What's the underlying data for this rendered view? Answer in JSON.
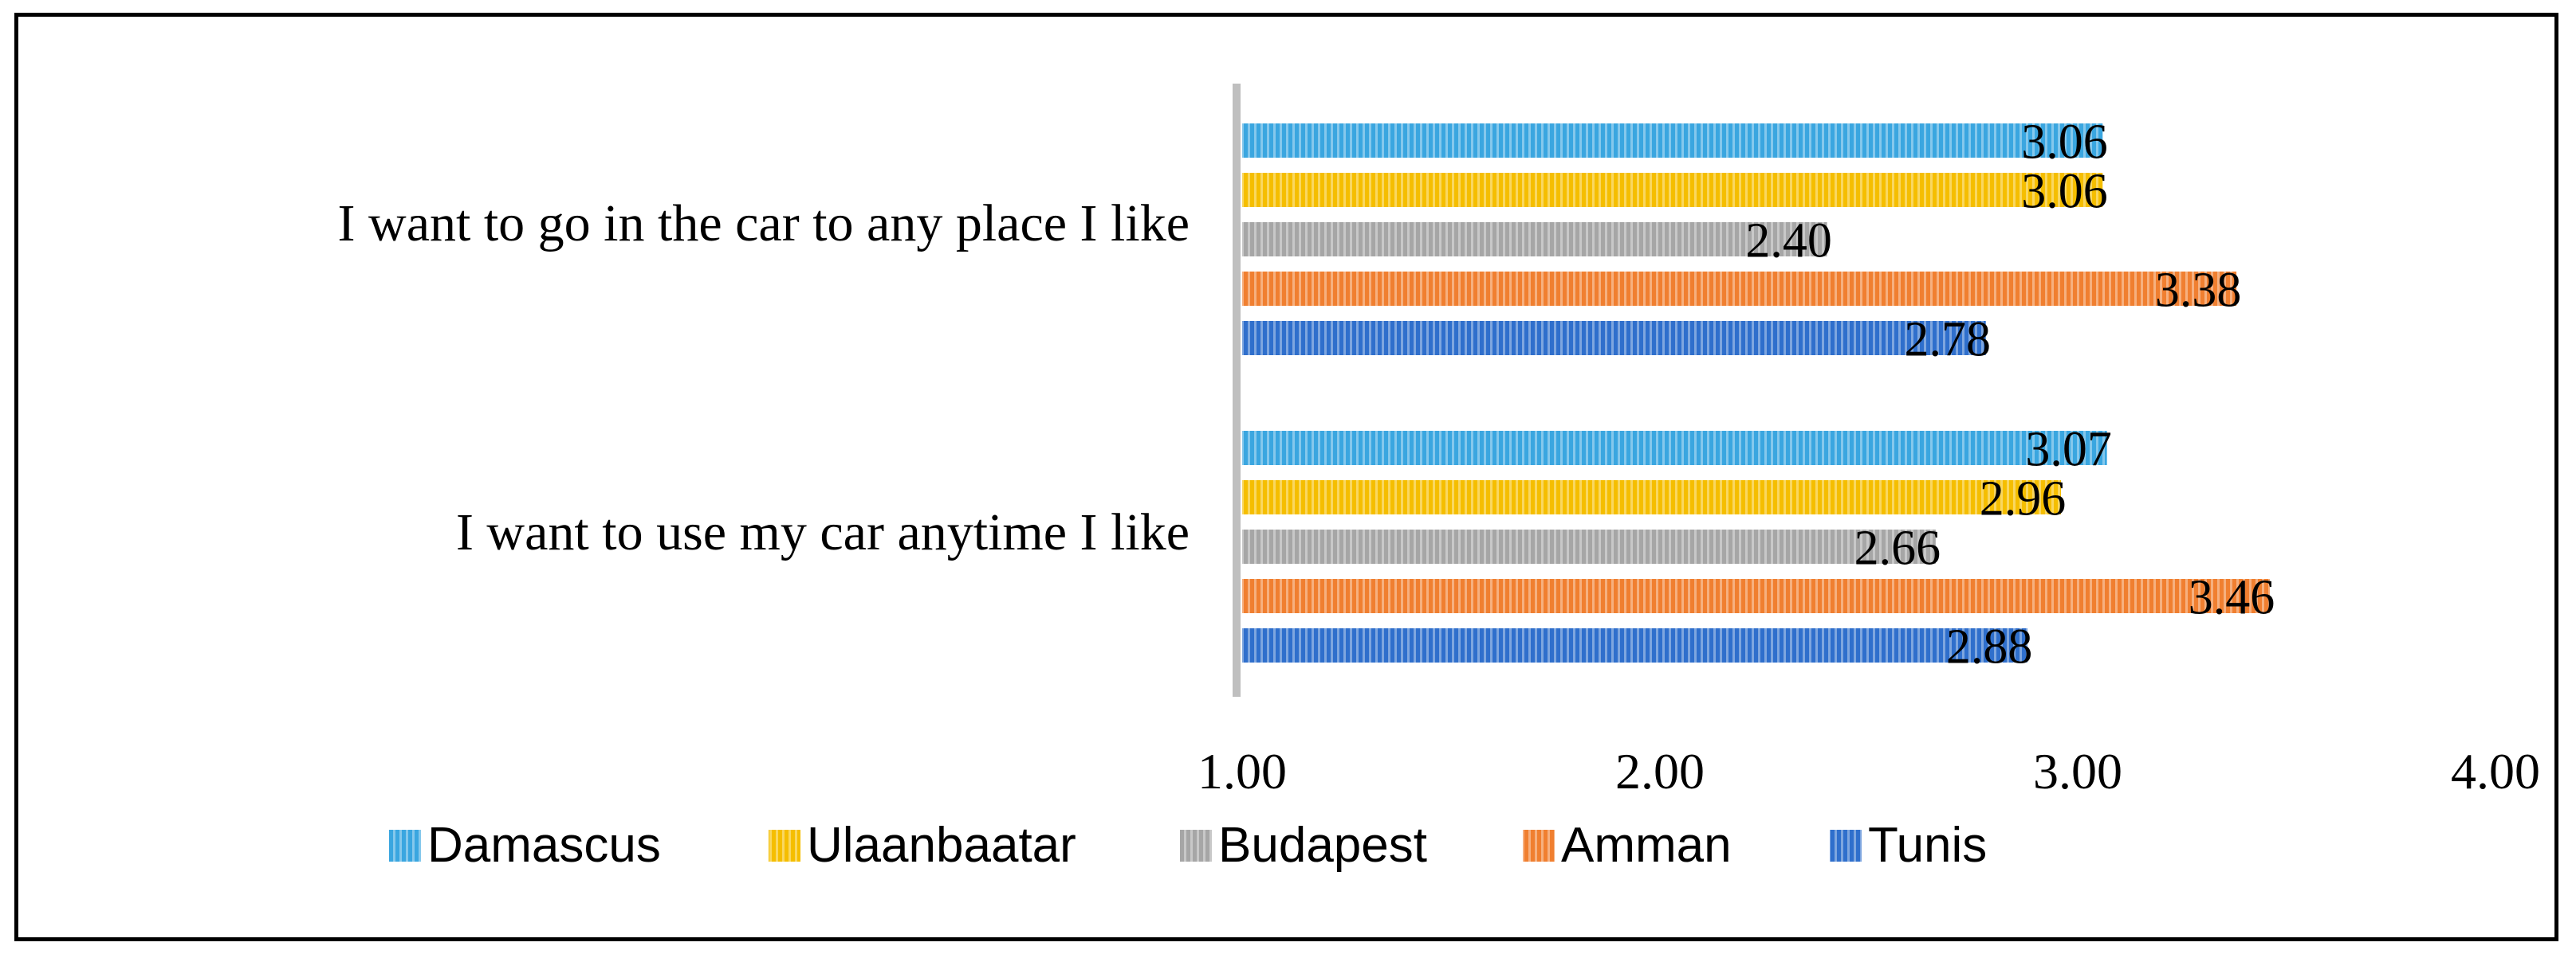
{
  "chart_data": {
    "type": "bar",
    "orientation": "horizontal",
    "title": "",
    "xlabel": "",
    "ylabel": "",
    "xlim": [
      1.0,
      4.0
    ],
    "ticks": [
      "1.00",
      "2.00",
      "3.00",
      "4.00"
    ],
    "tick_values": [
      1.0,
      2.0,
      3.0,
      4.0
    ],
    "grid": false,
    "legend_position": "bottom",
    "categories": [
      "I want to go in the car to any place I like",
      "I want to use my car anytime I like"
    ],
    "series": [
      {
        "name": "Damascus",
        "color": "#3AA6E0",
        "values": [
          3.06,
          3.07
        ],
        "labels": [
          "3.06",
          "3.07"
        ]
      },
      {
        "name": "Ulaanbaatar",
        "color": "#F5BE00",
        "values": [
          3.06,
          2.96
        ],
        "labels": [
          "3.06",
          "2.96"
        ]
      },
      {
        "name": "Budapest",
        "color": "#A6A6A6",
        "values": [
          2.4,
          2.66
        ],
        "labels": [
          "2.40",
          "2.66"
        ]
      },
      {
        "name": "Amman",
        "color": "#F07F30",
        "values": [
          3.38,
          3.46
        ],
        "labels": [
          "3.38",
          "3.46"
        ]
      },
      {
        "name": "Tunis",
        "color": "#2F6FCC",
        "values": [
          2.78,
          2.88
        ],
        "labels": [
          "2.78",
          "2.88"
        ]
      }
    ]
  }
}
